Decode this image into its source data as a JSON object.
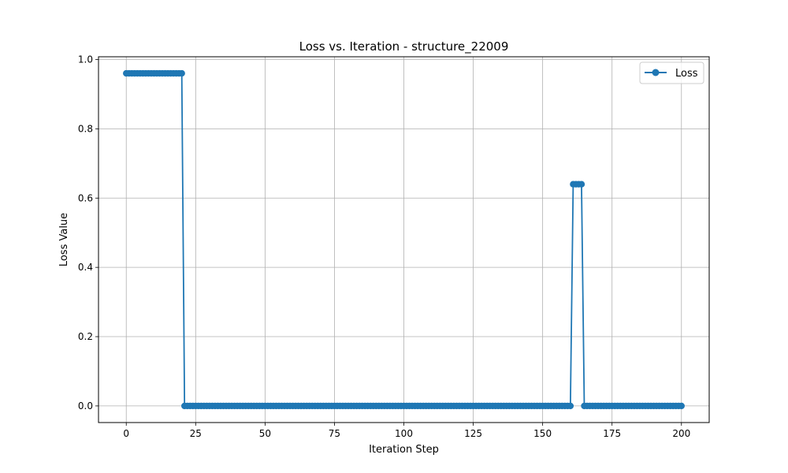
{
  "chart_data": {
    "type": "line",
    "title": "Loss vs. Iteration - structure_22009",
    "xlabel": "Iteration Step",
    "ylabel": "Loss Value",
    "xlim": [
      -10,
      210
    ],
    "ylim": [
      -0.048,
      1.008
    ],
    "xticks": [
      0,
      25,
      50,
      75,
      100,
      125,
      150,
      175,
      200
    ],
    "yticks": [
      0.0,
      0.2,
      0.4,
      0.6,
      0.8,
      1.0
    ],
    "xtick_labels": [
      "0",
      "25",
      "50",
      "75",
      "100",
      "125",
      "150",
      "175",
      "200"
    ],
    "ytick_labels": [
      "0.0",
      "0.2",
      "0.4",
      "0.6",
      "0.8",
      "1.0"
    ],
    "grid": true,
    "legend": {
      "position": "top-right",
      "entries": [
        "Loss"
      ]
    },
    "series": [
      {
        "name": "Loss",
        "color": "#1f77b4",
        "marker": "circle",
        "x": [
          0,
          1,
          2,
          3,
          4,
          5,
          6,
          7,
          8,
          9,
          10,
          11,
          12,
          13,
          14,
          15,
          16,
          17,
          18,
          19,
          20,
          21,
          22,
          23,
          24,
          25,
          26,
          27,
          28,
          29,
          30,
          31,
          32,
          33,
          34,
          35,
          36,
          37,
          38,
          39,
          40,
          41,
          42,
          43,
          44,
          45,
          46,
          47,
          48,
          49,
          50,
          51,
          52,
          53,
          54,
          55,
          56,
          57,
          58,
          59,
          60,
          61,
          62,
          63,
          64,
          65,
          66,
          67,
          68,
          69,
          70,
          71,
          72,
          73,
          74,
          75,
          76,
          77,
          78,
          79,
          80,
          81,
          82,
          83,
          84,
          85,
          86,
          87,
          88,
          89,
          90,
          91,
          92,
          93,
          94,
          95,
          96,
          97,
          98,
          99,
          100,
          101,
          102,
          103,
          104,
          105,
          106,
          107,
          108,
          109,
          110,
          111,
          112,
          113,
          114,
          115,
          116,
          117,
          118,
          119,
          120,
          121,
          122,
          123,
          124,
          125,
          126,
          127,
          128,
          129,
          130,
          131,
          132,
          133,
          134,
          135,
          136,
          137,
          138,
          139,
          140,
          141,
          142,
          143,
          144,
          145,
          146,
          147,
          148,
          149,
          150,
          151,
          152,
          153,
          154,
          155,
          156,
          157,
          158,
          159,
          160,
          161,
          162,
          163,
          164,
          165,
          166,
          167,
          168,
          169,
          170,
          171,
          172,
          173,
          174,
          175,
          176,
          177,
          178,
          179,
          180,
          181,
          182,
          183,
          184,
          185,
          186,
          187,
          188,
          189,
          190,
          191,
          192,
          193,
          194,
          195,
          196,
          197,
          198,
          199,
          200
        ],
        "y": [
          0.96,
          0.96,
          0.96,
          0.96,
          0.96,
          0.96,
          0.96,
          0.96,
          0.96,
          0.96,
          0.96,
          0.96,
          0.96,
          0.96,
          0.96,
          0.96,
          0.96,
          0.96,
          0.96,
          0.96,
          0.96,
          0,
          0,
          0,
          0,
          0,
          0,
          0,
          0,
          0,
          0,
          0,
          0,
          0,
          0,
          0,
          0,
          0,
          0,
          0,
          0,
          0,
          0,
          0,
          0,
          0,
          0,
          0,
          0,
          0,
          0,
          0,
          0,
          0,
          0,
          0,
          0,
          0,
          0,
          0,
          0,
          0,
          0,
          0,
          0,
          0,
          0,
          0,
          0,
          0,
          0,
          0,
          0,
          0,
          0,
          0,
          0,
          0,
          0,
          0,
          0,
          0,
          0,
          0,
          0,
          0,
          0,
          0,
          0,
          0,
          0,
          0,
          0,
          0,
          0,
          0,
          0,
          0,
          0,
          0,
          0,
          0,
          0,
          0,
          0,
          0,
          0,
          0,
          0,
          0,
          0,
          0,
          0,
          0,
          0,
          0,
          0,
          0,
          0,
          0,
          0,
          0,
          0,
          0,
          0,
          0,
          0,
          0,
          0,
          0,
          0,
          0,
          0,
          0,
          0,
          0,
          0,
          0,
          0,
          0,
          0,
          0,
          0,
          0,
          0,
          0,
          0,
          0,
          0,
          0,
          0,
          0,
          0,
          0,
          0,
          0,
          0,
          0,
          0,
          0,
          0,
          0.64,
          0.64,
          0.64,
          0.64,
          0,
          0,
          0,
          0,
          0,
          0,
          0,
          0,
          0,
          0,
          0,
          0,
          0,
          0,
          0,
          0,
          0,
          0,
          0,
          0,
          0,
          0,
          0,
          0,
          0,
          0,
          0,
          0,
          0,
          0,
          0,
          0,
          0,
          0,
          0,
          0
        ]
      }
    ]
  }
}
